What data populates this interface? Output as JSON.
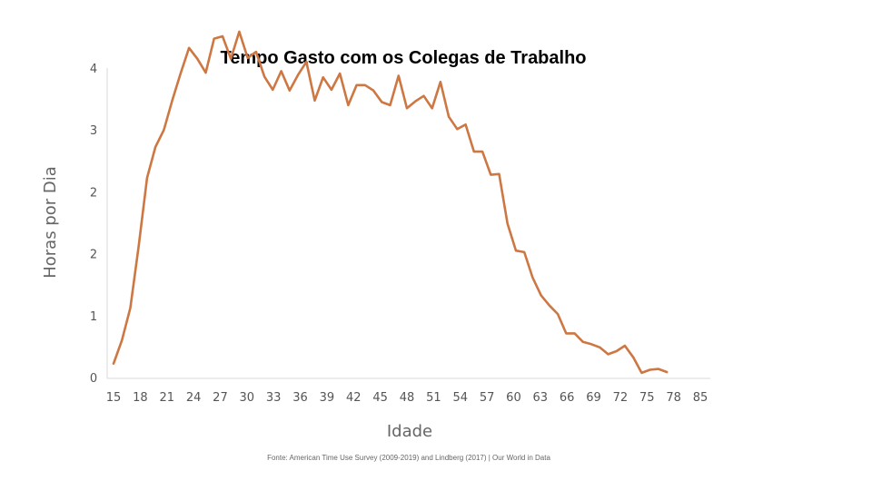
{
  "chart_data": {
    "type": "line",
    "title": "Tempo Gasto com os Colegas de Trabalho",
    "xlabel": "Idade",
    "ylabel": "Horas por Dia",
    "source": "Fonte: American Time Use Survey (2009-2019) and Lindberg (2017) | Our World in Data",
    "xlim": [
      15,
      85
    ],
    "ylim": [
      0,
      4
    ],
    "x_ticks": [
      "15",
      "18",
      "21",
      "24",
      "27",
      "30",
      "33",
      "36",
      "39",
      "42",
      "45",
      "48",
      "51",
      "54",
      "57",
      "60",
      "63",
      "66",
      "69",
      "72",
      "75",
      "78",
      "85"
    ],
    "y_ticks": [
      "0",
      "1",
      "2",
      "2",
      "3",
      "4"
    ],
    "grid": false,
    "color": "#cd7743",
    "series": [
      {
        "x": [
          15,
          16,
          17,
          18,
          19,
          20,
          21,
          22,
          23,
          24,
          25,
          26,
          27,
          28,
          29,
          30,
          31,
          32,
          33,
          34,
          35,
          36,
          37,
          38,
          39,
          40,
          41,
          42,
          43,
          44,
          45,
          46,
          47,
          48,
          49,
          50,
          51,
          52,
          53,
          54,
          55,
          56,
          57,
          58,
          59,
          60,
          61,
          62,
          63,
          64,
          65,
          66,
          67,
          68,
          69,
          70,
          71,
          72,
          73,
          74,
          75,
          76,
          77,
          78,
          79,
          80,
          81
        ],
        "y": [
          0.18,
          0.48,
          0.9,
          1.7,
          2.58,
          2.98,
          3.2,
          3.58,
          3.93,
          4.26,
          4.12,
          3.94,
          4.38,
          4.41,
          4.12,
          4.47,
          4.13,
          4.21,
          3.89,
          3.72,
          3.96,
          3.71,
          3.91,
          4.08,
          3.58,
          3.88,
          3.72,
          3.93,
          3.52,
          3.78,
          3.78,
          3.71,
          3.56,
          3.52,
          3.9,
          3.48,
          3.57,
          3.64,
          3.48,
          3.82,
          3.37,
          3.21,
          3.27,
          2.92,
          2.92,
          2.62,
          2.63,
          1.99,
          1.64,
          1.62,
          1.29,
          1.06,
          0.93,
          0.82,
          0.57,
          0.57,
          0.46,
          0.43,
          0.39,
          0.3,
          0.34,
          0.41,
          0.26,
          0.06,
          0.1,
          0.11,
          0.07
        ]
      }
    ]
  }
}
